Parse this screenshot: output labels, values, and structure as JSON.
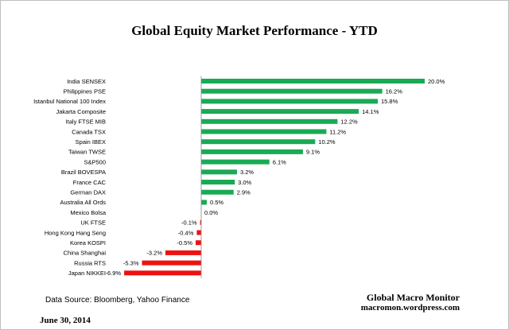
{
  "page": {
    "title": "Global Equity Market Performance  - YTD",
    "source": "Data Source:  Bloomberg, Yahoo Finance",
    "brand_name": "Global  Macro Monitor",
    "brand_site": "macromon.wordpress.com",
    "date": "June 30, 2014"
  },
  "colors": {
    "positive": "#1aaa55",
    "negative": "#ee1111",
    "axis": "#888888"
  },
  "chart_data": {
    "type": "bar",
    "orientation": "horizontal",
    "title": "Global Equity Market Performance  - YTD",
    "categories": [
      "India SENSEX",
      "Philippines PSE",
      "Istanbul National 100 Index",
      "Jakarta Composite",
      "Italy FTSE MIB",
      "Canada TSX",
      "Spain IBEX",
      "Taiwan  TWSE",
      "S&P500",
      "Brazil BOVESPA",
      "France CAC",
      "German DAX",
      "Australia All Ords",
      "Mexico Bolsa",
      "UK FTSE",
      "Hong Kong Hang Seng",
      "Korea KOSPI",
      "China Shanghai",
      "Russia RTS",
      "Japan NIKKEI"
    ],
    "values": [
      20.0,
      16.2,
      15.8,
      14.1,
      12.2,
      11.2,
      10.2,
      9.1,
      6.1,
      3.2,
      3.0,
      2.9,
      0.5,
      0.0,
      -0.1,
      -0.4,
      -0.5,
      -3.2,
      -5.3,
      -6.9
    ],
    "data_labels": [
      "20.0%",
      "16.2%",
      "15.8%",
      "14.1%",
      "12.2%",
      "11.2%",
      "10.2%",
      "9.1%",
      "6.1%",
      "3.2%",
      "3.0%",
      "2.9%",
      "0.5%",
      "0.0%",
      "-0.1%",
      "-0.4%",
      "-0.5%",
      "-3.2%",
      "-5.3%",
      "-6.9%"
    ],
    "xlim": [
      -6.9,
      20.0
    ],
    "grid": false,
    "legend": "none"
  }
}
